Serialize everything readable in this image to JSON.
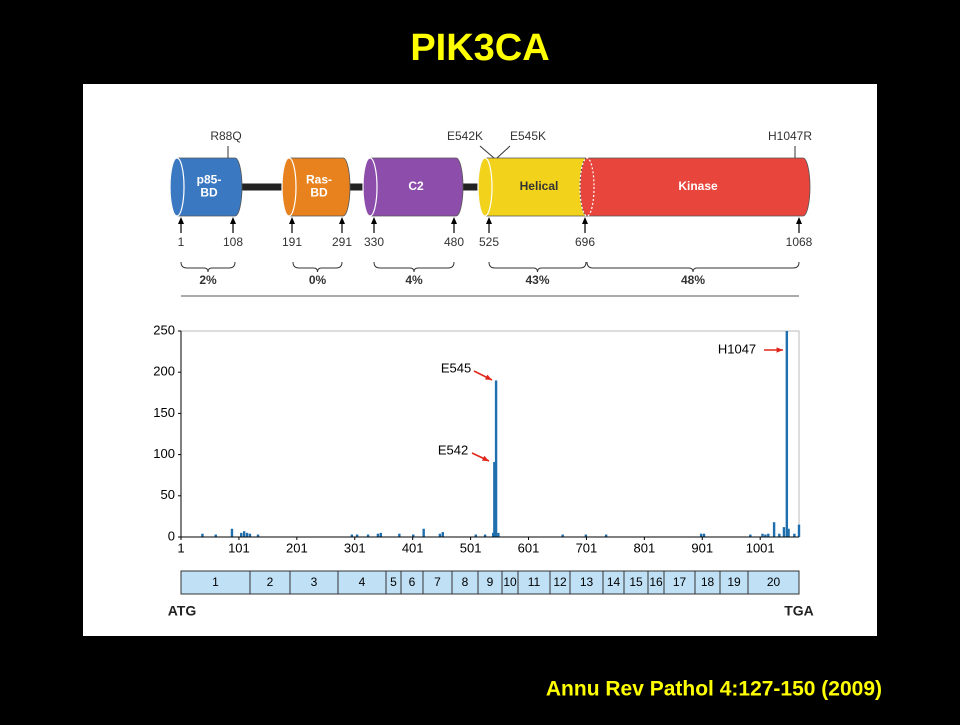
{
  "slide": {
    "title": "PIK3CA",
    "citation": "Annu Rev Pathol 4:127-150 (2009)"
  },
  "protein": {
    "mutations": [
      "R88Q",
      "E542K",
      "E545K",
      "H1047R"
    ],
    "domains": [
      {
        "name": [
          "p85-",
          "BD"
        ],
        "color": "#3a78c2"
      },
      {
        "name": [
          "Ras-",
          "BD"
        ],
        "color": "#e8821e"
      },
      {
        "name": [
          "C2"
        ],
        "color": "#8c4eaa"
      },
      {
        "name": [
          "Helical"
        ],
        "color": "#f2d21b"
      },
      {
        "name": [
          "Kinase"
        ],
        "color": "#e8453c"
      }
    ],
    "positions": [
      1,
      108,
      191,
      291,
      330,
      480,
      525,
      696,
      1068
    ],
    "percentages": [
      "2%",
      "0%",
      "4%",
      "43%",
      "48%"
    ]
  },
  "chart_data": {
    "type": "bar",
    "color": "#1f6fae",
    "x": [
      38,
      61,
      89,
      105,
      110,
      115,
      120,
      134,
      296,
      305,
      324,
      341,
      346,
      378,
      402,
      420,
      448,
      453,
      510,
      526,
      540,
      542,
      545,
      549,
      660,
      700,
      735,
      899,
      904,
      984,
      1005,
      1010,
      1015,
      1025,
      1034,
      1042,
      1047,
      1050,
      1060,
      1068
    ],
    "values": [
      4,
      3,
      10,
      5,
      7,
      5,
      4,
      3,
      3,
      3,
      3,
      4,
      5,
      4,
      3,
      10,
      4,
      6,
      3,
      3,
      5,
      91,
      190,
      5,
      3,
      3,
      3,
      4,
      4,
      3,
      4,
      3,
      4,
      18,
      4,
      12,
      250,
      10,
      4,
      15
    ],
    "xlim": [
      1,
      1068
    ],
    "xticks": [
      1,
      101,
      201,
      301,
      401,
      501,
      601,
      701,
      801,
      901,
      1001
    ],
    "ylim": [
      0,
      250
    ],
    "yticks": [
      0,
      50,
      100,
      150,
      200,
      250
    ],
    "grid": false,
    "annotations": [
      "E545",
      "E542",
      "H1047"
    ]
  },
  "exons": {
    "labels": [
      1,
      2,
      3,
      4,
      5,
      6,
      7,
      8,
      9,
      10,
      11,
      12,
      13,
      14,
      15,
      16,
      17,
      18,
      19,
      20
    ],
    "start": "ATG",
    "end": "TGA"
  }
}
